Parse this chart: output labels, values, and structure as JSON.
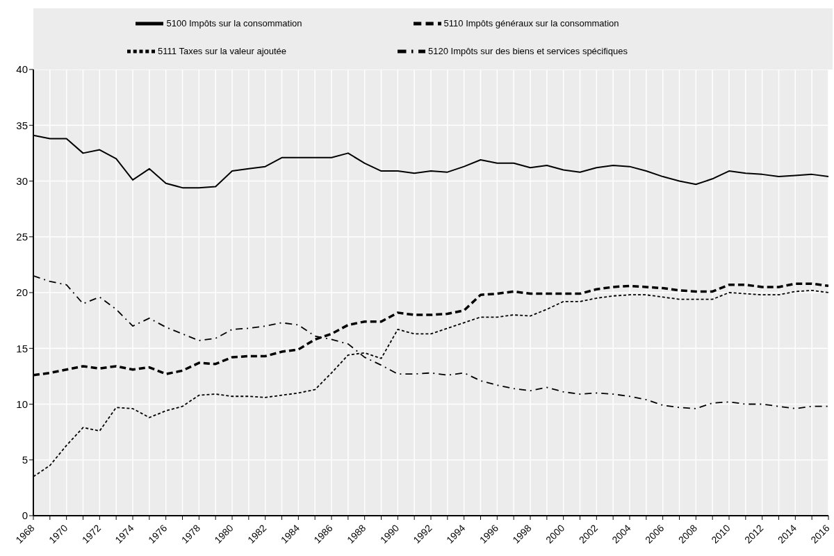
{
  "chart_data": {
    "type": "line",
    "x": [
      1968,
      1969,
      1970,
      1971,
      1972,
      1973,
      1974,
      1975,
      1976,
      1977,
      1978,
      1979,
      1980,
      1981,
      1982,
      1983,
      1984,
      1985,
      1986,
      1987,
      1988,
      1989,
      1990,
      1991,
      1992,
      1993,
      1994,
      1995,
      1996,
      1997,
      1998,
      1999,
      2000,
      2001,
      2002,
      2003,
      2004,
      2005,
      2006,
      2007,
      2008,
      2009,
      2010,
      2011,
      2012,
      2013,
      2014,
      2015,
      2016
    ],
    "series": [
      {
        "name": "5100 Impôts sur la consommation",
        "color": "#000000",
        "line_style": "solid",
        "values": [
          34.1,
          33.8,
          33.8,
          32.5,
          32.8,
          32.0,
          30.1,
          31.1,
          29.8,
          29.4,
          29.4,
          29.5,
          30.9,
          31.1,
          31.3,
          32.1,
          32.1,
          32.1,
          32.1,
          32.5,
          31.6,
          30.9,
          30.9,
          30.7,
          30.9,
          30.8,
          31.3,
          31.9,
          31.6,
          31.6,
          31.2,
          31.4,
          31.0,
          30.8,
          31.2,
          31.4,
          31.3,
          30.9,
          30.4,
          30.0,
          29.7,
          30.2,
          30.9,
          30.7,
          30.6,
          30.4,
          30.5,
          30.6,
          30.4
        ]
      },
      {
        "name": "5110 Impôts généraux sur la consommation",
        "color": "#000000",
        "line_style": "dashed",
        "values": [
          12.6,
          12.8,
          13.1,
          13.4,
          13.2,
          13.4,
          13.1,
          13.3,
          12.7,
          13.0,
          13.7,
          13.6,
          14.2,
          14.3,
          14.3,
          14.7,
          14.9,
          15.8,
          16.3,
          17.1,
          17.4,
          17.4,
          18.2,
          18.0,
          18.0,
          18.1,
          18.4,
          19.8,
          19.9,
          20.1,
          19.9,
          19.9,
          19.9,
          19.9,
          20.3,
          20.5,
          20.6,
          20.5,
          20.4,
          20.2,
          20.1,
          20.1,
          20.7,
          20.7,
          20.5,
          20.5,
          20.8,
          20.8,
          20.6
        ]
      },
      {
        "name": "5120 Impôts sur des biens et services spécifiques",
        "color": "#000000",
        "line_style": "dashdot",
        "values": [
          21.5,
          21.0,
          20.7,
          19.0,
          19.6,
          18.5,
          17.0,
          17.7,
          16.9,
          16.3,
          15.7,
          15.9,
          16.7,
          16.8,
          17.0,
          17.3,
          17.1,
          16.1,
          15.8,
          15.4,
          14.2,
          13.5,
          12.7,
          12.7,
          12.8,
          12.6,
          12.8,
          12.1,
          11.7,
          11.4,
          11.2,
          11.5,
          11.1,
          10.9,
          11.0,
          10.9,
          10.7,
          10.4,
          9.9,
          9.7,
          9.6,
          10.1,
          10.2,
          10.0,
          10.0,
          9.8,
          9.6,
          9.8,
          9.8
        ]
      },
      {
        "name": "5111 Taxes sur la valeur ajoutée",
        "color": "#000000",
        "line_style": "dotted",
        "values": [
          3.5,
          4.5,
          6.3,
          7.9,
          7.6,
          9.7,
          9.6,
          8.8,
          9.4,
          9.8,
          10.8,
          10.9,
          10.7,
          10.7,
          10.6,
          10.8,
          11.0,
          11.3,
          12.8,
          14.4,
          14.6,
          14.1,
          16.7,
          16.3,
          16.3,
          16.8,
          17.3,
          17.8,
          17.8,
          18.0,
          17.9,
          18.5,
          19.2,
          19.2,
          19.5,
          19.7,
          19.8,
          19.8,
          19.6,
          19.4,
          19.4,
          19.4,
          20.0,
          19.9,
          19.8,
          19.8,
          20.1,
          20.2,
          20.0
        ]
      }
    ],
    "xlim": [
      1968,
      2016
    ],
    "xticks": [
      1968,
      {
        "value": 1969,
        "label": null
      },
      1970,
      {
        "value": 1971,
        "label": null
      },
      1972,
      {
        "value": 1973,
        "label": null
      },
      1974,
      {
        "value": 1975,
        "label": null
      },
      1976,
      {
        "value": 1977,
        "label": null
      },
      1978,
      {
        "value": 1979,
        "label": null
      },
      1980,
      {
        "value": 1981,
        "label": null
      },
      1982,
      {
        "value": 1983,
        "label": null
      },
      1984,
      {
        "value": 1985,
        "label": null
      },
      1986,
      {
        "value": 1987,
        "label": null
      },
      1988,
      {
        "value": 1989,
        "label": null
      },
      1990,
      {
        "value": 1991,
        "label": null
      },
      1992,
      {
        "value": 1993,
        "label": null
      },
      1994,
      {
        "value": 1995,
        "label": null
      },
      1996,
      {
        "value": 1997,
        "label": null
      },
      1998,
      {
        "value": 1999,
        "label": null
      },
      2000,
      {
        "value": 2001,
        "label": null
      },
      2002,
      {
        "value": 2003,
        "label": null
      },
      2004,
      {
        "value": 2005,
        "label": null
      },
      2006,
      {
        "value": 2007,
        "label": null
      },
      2008,
      {
        "value": 2009,
        "label": null
      },
      2010,
      {
        "value": 2011,
        "label": null
      },
      2012,
      {
        "value": 2013,
        "label": null
      },
      2014,
      {
        "value": 2015,
        "label": null
      },
      2016
    ],
    "ylim": [
      0,
      40
    ],
    "yticks": [
      0,
      5,
      10,
      15,
      20,
      25,
      30,
      35,
      40
    ],
    "grid": true,
    "legend": "top",
    "marker": "none"
  }
}
